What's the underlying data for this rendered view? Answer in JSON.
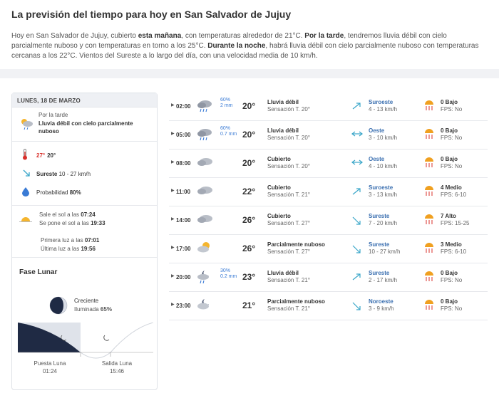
{
  "header": {
    "title": "La previsión del tiempo para hoy en San Salvador de Jujuy",
    "summary": {
      "p1": "Hoy en San Salvador de Jujuy, cubierto ",
      "b1": "esta mañana",
      "p2": ", con temperaturas alrededor de 21°C. ",
      "b2": "Por la tarde",
      "p3": ", tendremos lluvia débil con cielo parcialmente nuboso y con temperaturas en torno a los 25°C. ",
      "b3": "Durante la noche",
      "p4": ", habrá lluvia débil con cielo parcialmente nuboso con temperaturas cercanas a los 22°C. Vientos del Sureste a lo largo del día, con una velocidad media de 10 km/h."
    }
  },
  "day": {
    "date": "LUNES, 18 DE MARZO",
    "afternoon_label": "Por la tarde",
    "afternoon_desc": "Lluvia débil con cielo parcialmente nuboso",
    "tmax": "27°",
    "tmin": "20°",
    "wind_dir": "Sureste",
    "wind_speed": "10 - 27 km/h",
    "prob_label": "Probabilidad",
    "prob_value": "80%",
    "sunrise_label": "Sale el sol a las",
    "sunrise": "07:24",
    "sunset_label": "Se pone el sol a las",
    "sunset": "19:33",
    "first_light_label": "Primera luz a las",
    "first_light": "07:01",
    "last_light_label": "Última luz a las",
    "last_light": "19:56"
  },
  "moon": {
    "title": "Fase Lunar",
    "phase": "Creciente",
    "illum_label": "Iluminada",
    "illum_value": "65%",
    "set_label": "Puesta Luna",
    "set_time": "01:24",
    "rise_label": "Salida Luna",
    "rise_time": "15:46"
  },
  "hours": [
    {
      "hour": "02:00",
      "icon": "rain-cloud-icon",
      "prob": "60%",
      "mm": "2 mm",
      "temp": "20°",
      "desc": "Lluvia débil",
      "sens": "Sensación T. 20°",
      "wind_icon": "arrow-up-right-icon",
      "wdir": "Suroeste",
      "wspd": "4 - 13 km/h",
      "uv": "0 Bajo",
      "fps": "FPS: No"
    },
    {
      "hour": "05:00",
      "icon": "rain-cloud-icon",
      "prob": "60%",
      "mm": "0.7 mm",
      "temp": "20°",
      "desc": "Lluvia débil",
      "sens": "Sensación T. 20°",
      "wind_icon": "arrow-right-icon",
      "wdir": "Oeste",
      "wspd": "3 - 10 km/h",
      "uv": "0 Bajo",
      "fps": "FPS: No"
    },
    {
      "hour": "08:00",
      "icon": "cloud-icon",
      "prob": "",
      "mm": "",
      "temp": "20°",
      "desc": "Cubierto",
      "sens": "Sensación T. 20°",
      "wind_icon": "arrow-right-icon",
      "wdir": "Oeste",
      "wspd": "4 - 10 km/h",
      "uv": "0 Bajo",
      "fps": "FPS: No"
    },
    {
      "hour": "11:00",
      "icon": "cloud-icon",
      "prob": "",
      "mm": "",
      "temp": "22°",
      "desc": "Cubierto",
      "sens": "Sensación T. 21°",
      "wind_icon": "arrow-up-right-icon",
      "wdir": "Suroeste",
      "wspd": "3 - 13 km/h",
      "uv": "4 Medio",
      "fps": "FPS: 6-10"
    },
    {
      "hour": "14:00",
      "icon": "cloud-icon",
      "prob": "",
      "mm": "",
      "temp": "26°",
      "desc": "Cubierto",
      "sens": "Sensación T. 27°",
      "wind_icon": "arrow-up-left-icon",
      "wdir": "Sureste",
      "wspd": "7 - 20 km/h",
      "uv": "7 Alto",
      "fps": "FPS: 15-25"
    },
    {
      "hour": "17:00",
      "icon": "partly-cloudy-icon",
      "prob": "",
      "mm": "",
      "temp": "26°",
      "desc": "Parcialmente nuboso",
      "sens": "Sensación T. 27°",
      "wind_icon": "arrow-up-left-icon",
      "wdir": "Sureste",
      "wspd": "10 - 27 km/h",
      "uv": "3 Medio",
      "fps": "FPS: 6-10"
    },
    {
      "hour": "20:00",
      "icon": "night-rain-icon",
      "prob": "30%",
      "mm": "0.2 mm",
      "temp": "23°",
      "desc": "Lluvia débil",
      "sens": "Sensación T. 21°",
      "wind_icon": "arrow-up-right-icon",
      "wdir": "Sureste",
      "wspd": "2 - 17 km/h",
      "uv": "0 Bajo",
      "fps": "FPS: No"
    },
    {
      "hour": "23:00",
      "icon": "night-cloud-icon",
      "prob": "",
      "mm": "",
      "temp": "21°",
      "desc": "Parcialmente nuboso",
      "sens": "Sensación T. 21°",
      "wind_icon": "arrow-down-right-icon",
      "wdir": "Noroeste",
      "wspd": "3 - 9 km/h",
      "uv": "0 Bajo",
      "fps": "FPS: No"
    }
  ],
  "colors": {
    "accent": "#3a7bd5",
    "hot": "#d9302b",
    "uv": "#f0a020"
  }
}
